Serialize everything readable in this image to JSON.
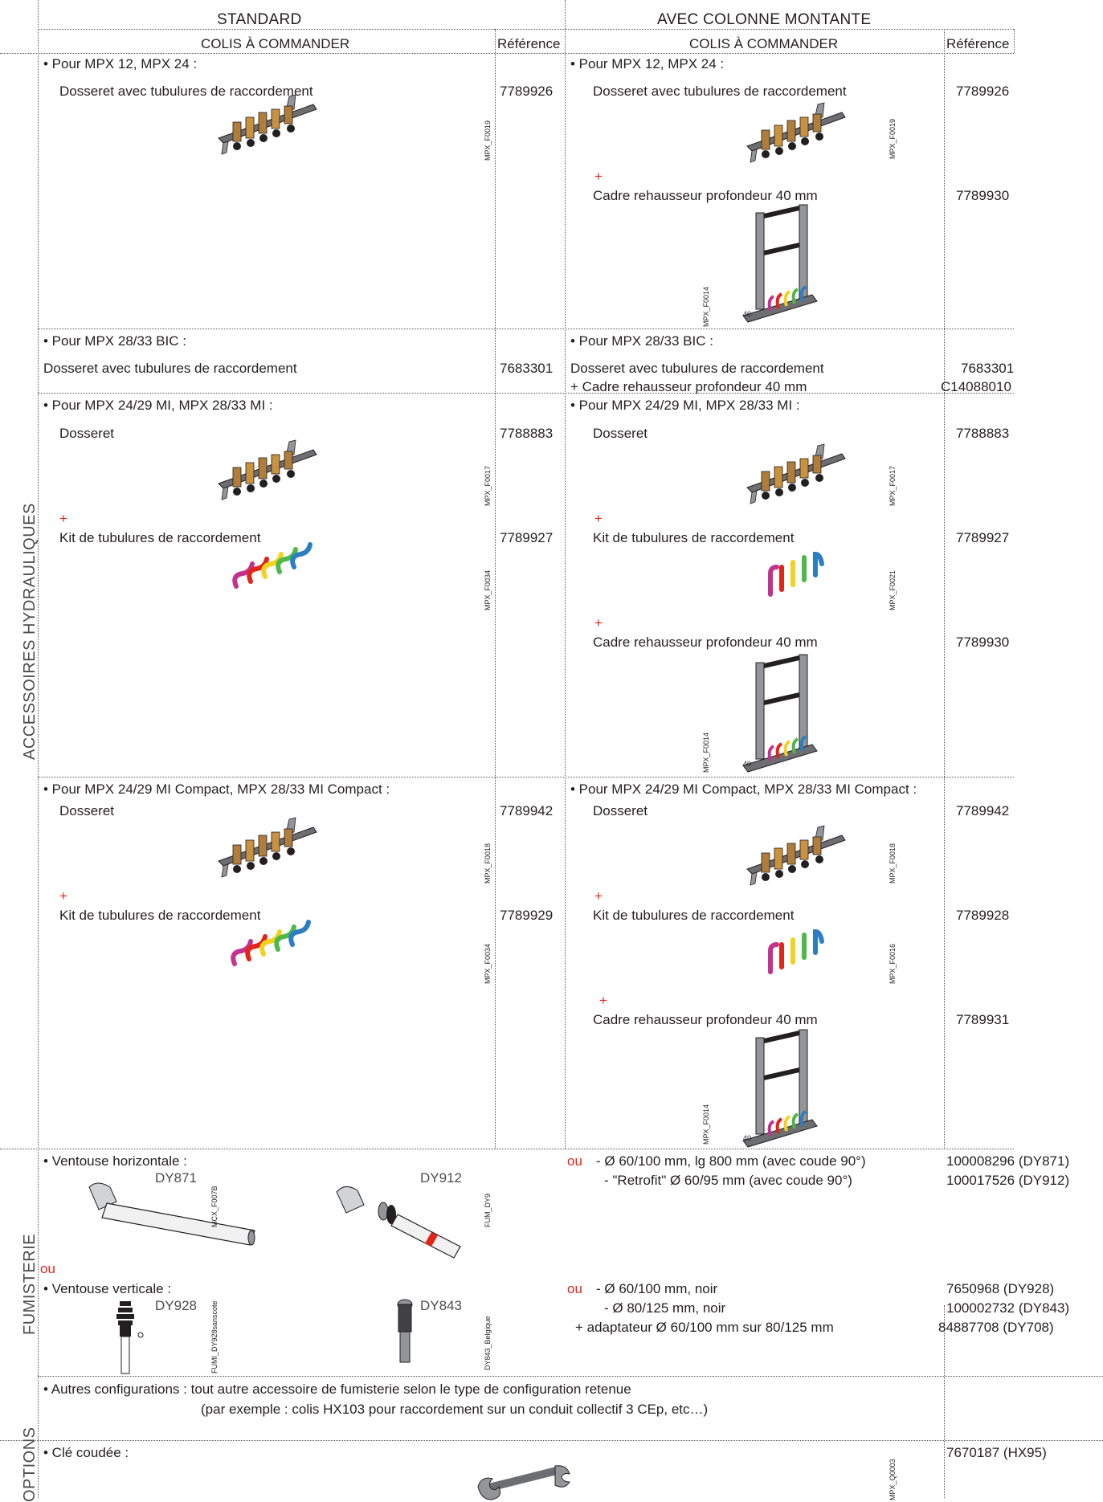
{
  "headers": {
    "standard": "STANDARD",
    "colonne": "AVEC COLONNE MONTANTE",
    "colis": "COLIS À COMMANDER",
    "reference": "Référence"
  },
  "side_labels": {
    "hydrauliques": "ACCESSOIRES HYDRAULIQUES",
    "fumisterie": "FUMISTERIE",
    "options": "OPTIONS"
  },
  "plus": "+",
  "ou": "ou",
  "hydro": {
    "r1": {
      "std_title": "• Pour MPX 12, MPX 24 :",
      "std_item": "Dosseret avec tubulures de raccordement",
      "std_ref": "7789926",
      "std_code": "MPX_F0019",
      "col_title": "• Pour MPX 12, MPX 24 :",
      "col_item": "Dosseret avec tubulures de raccordement",
      "col_ref": "7789926",
      "col_code": "MPX_F0019",
      "col_item2": "Cadre rehausseur profondeur 40 mm",
      "col_ref2": "7789930",
      "col_code2": "MPX_F0014",
      "depth": "40"
    },
    "r2": {
      "std_title": "• Pour MPX 28/33 BIC :",
      "std_item": "Dosseret avec tubulures de raccordement",
      "std_ref": "7683301",
      "col_title": "• Pour MPX 28/33 BIC :",
      "col_item": "Dosseret avec tubulures de raccordement",
      "col_ref": "7683301",
      "col_item2": "+ Cadre rehausseur profondeur 40 mm",
      "col_ref2": "C14088010"
    },
    "r3": {
      "std_title": "• Pour MPX 24/29 MI, MPX 28/33 MI :",
      "std_item": "Dosseret",
      "std_ref": "7788883",
      "std_code": "MPX_F0017",
      "std_item2": "Kit de tubulures de raccordement",
      "std_ref2": "7789927",
      "std_code2": "MPX_F0034",
      "col_title": "• Pour MPX 24/29 MI, MPX 28/33 MI :",
      "col_item": "Dosseret",
      "col_ref": "7788883",
      "col_code": "MPX_F0017",
      "col_item2": "Kit de tubulures de raccordement",
      "col_ref2": "7789927",
      "col_code2": "MPX_F0021",
      "col_item3": "Cadre rehausseur profondeur 40 mm",
      "col_ref3": "7789930",
      "col_code3": "MPX_F0014",
      "depth": "40"
    },
    "r4": {
      "std_title": "• Pour MPX 24/29 MI Compact, MPX 28/33 MI Compact :",
      "std_item": "Dosseret",
      "std_ref": "7789942",
      "std_code": "MPX_F0018",
      "std_item2": "Kit de tubulures de raccordement",
      "std_ref2": "7789929",
      "std_code2": "MPX_F0034",
      "col_title": "• Pour MPX 24/29 MI Compact, MPX 28/33 MI Compact :",
      "col_item": "Dosseret",
      "col_ref": "7789942",
      "col_code": "MPX_F0018",
      "col_item2": "Kit de tubulures de raccordement",
      "col_ref2": "7789928",
      "col_code2": "MPX_F0016",
      "col_item3": "Cadre rehausseur profondeur 40 mm",
      "col_ref3": "7789931",
      "col_code3": "MPX_F0014",
      "depth": "40"
    }
  },
  "fumi": {
    "horiz_title": "• Ventouse horizontale :",
    "dy871": "DY871",
    "dy871_code": "MCX_F007B",
    "dy912": "DY912",
    "dy912_code": "FUM_DY9",
    "h_opt1": "- Ø 60/100 mm, lg 800 mm (avec coude 90°)",
    "h_opt2": "- \"Retrofit\" Ø 60/95 mm (avec coude 90°)",
    "h_ref1": "100008296 (DY871)",
    "h_ref2": "100017526 (DY912)",
    "vert_title": "• Ventouse verticale :",
    "dy928": "DY928",
    "dy928_code": "FUMI_DY928sanscote",
    "dy843": "DY843",
    "dy843_code": "DY843_Belgique",
    "v_opt1": "- Ø 60/100 mm, noir",
    "v_opt2": "- Ø 80/125 mm, noir",
    "v_opt3": "+ adaptateur Ø 60/100 mm sur 80/125 mm",
    "v_ref1": "7650968 (DY928)",
    "v_ref2": "100002732 (DY843)",
    "v_ref3": "84887708 (DY708)",
    "autres1": "• Autres configurations : tout autre accessoire de fumisterie selon le type de configuration retenue",
    "autres2": "(par exemple : colis HX103 pour raccordement sur un conduit collectif 3 CEp, etc…)"
  },
  "options": {
    "cle": "• Clé coudée :",
    "cle_ref": "7670187 (HX95)",
    "cle_code": "MPX_Q0003"
  },
  "colors": {
    "accent_red": "#e1251b",
    "text": "#231f20",
    "pipe_magenta": "#c2338f",
    "pipe_red": "#e1251b",
    "pipe_yellow": "#f2d21e",
    "pipe_green": "#4fb848",
    "pipe_blue": "#2d7dc3"
  }
}
